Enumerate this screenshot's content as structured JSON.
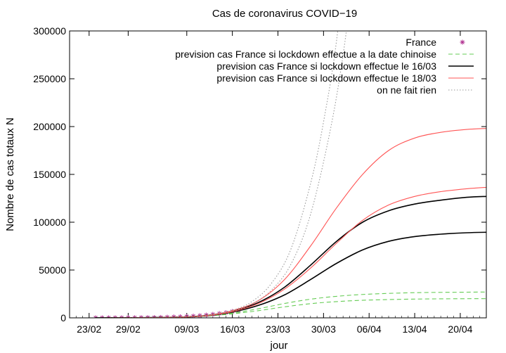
{
  "chart_data": {
    "type": "line",
    "title": "Cas de coronavirus COVID−19",
    "xlabel": "jour",
    "ylabel": "Nombre de cas totaux N",
    "xlim": [
      "2020-02-20",
      "2020-04-24"
    ],
    "ylim": [
      0,
      300000
    ],
    "x_ticks": [
      {
        "date": "2020-02-23",
        "label": "23/02"
      },
      {
        "date": "2020-02-29",
        "label": "29/02"
      },
      {
        "date": "2020-03-09",
        "label": "09/03"
      },
      {
        "date": "2020-03-16",
        "label": "16/03"
      },
      {
        "date": "2020-03-23",
        "label": "23/03"
      },
      {
        "date": "2020-03-30",
        "label": "30/03"
      },
      {
        "date": "2020-04-06",
        "label": "06/04"
      },
      {
        "date": "2020-04-13",
        "label": "13/04"
      },
      {
        "date": "2020-04-20",
        "label": "20/04"
      }
    ],
    "y_ticks": [
      {
        "value": 0,
        "label": "0"
      },
      {
        "value": 50000,
        "label": "50000"
      },
      {
        "value": 100000,
        "label": "100000"
      },
      {
        "value": 150000,
        "label": "150000"
      },
      {
        "value": 200000,
        "label": "200000"
      },
      {
        "value": 250000,
        "label": "250000"
      },
      {
        "value": 300000,
        "label": "300000"
      }
    ],
    "grid": false,
    "legend_position": "top-right",
    "series": [
      {
        "name": "France",
        "style": "points",
        "color": "#b03090",
        "x": [
          "2020-02-24",
          "2020-02-25",
          "2020-02-26",
          "2020-02-27",
          "2020-02-28",
          "2020-02-29",
          "2020-03-01",
          "2020-03-02",
          "2020-03-03",
          "2020-03-04",
          "2020-03-05",
          "2020-03-06",
          "2020-03-07",
          "2020-03-08",
          "2020-03-09",
          "2020-03-10",
          "2020-03-11",
          "2020-03-12",
          "2020-03-13",
          "2020-03-14",
          "2020-03-15",
          "2020-03-16",
          "2020-03-17"
        ],
        "y": [
          12,
          12,
          18,
          38,
          57,
          100,
          130,
          191,
          212,
          285,
          423,
          653,
          949,
          1126,
          1412,
          1784,
          2281,
          2876,
          3661,
          4499,
          5423,
          6633,
          7730
        ]
      },
      {
        "name": "prevision cas France si lockdown effectue  a la date chinoise",
        "style": "dashed",
        "color": "#66cc55",
        "curves": [
          {
            "x": [
              "2020-02-24",
              "2020-03-01",
              "2020-03-08",
              "2020-03-12",
              "2020-03-16",
              "2020-03-20",
              "2020-03-24",
              "2020-03-28",
              "2020-04-01",
              "2020-04-06",
              "2020-04-13",
              "2020-04-20",
              "2020-04-24"
            ],
            "y": [
              20,
              120,
              700,
              2000,
              5000,
              9500,
              15000,
              19500,
              22500,
              24800,
              26300,
              26800,
              27000
            ]
          },
          {
            "x": [
              "2020-02-24",
              "2020-03-01",
              "2020-03-08",
              "2020-03-12",
              "2020-03-16",
              "2020-03-20",
              "2020-03-24",
              "2020-03-28",
              "2020-04-01",
              "2020-04-06",
              "2020-04-13",
              "2020-04-20",
              "2020-04-24"
            ],
            "y": [
              20,
              110,
              650,
              1800,
              4200,
              7500,
              11500,
              14800,
              17000,
              18600,
              19600,
              20000,
              20100
            ]
          }
        ]
      },
      {
        "name": "prevision cas France si lockdown effectue  le  16/03",
        "style": "solid",
        "color": "#000000",
        "curves": [
          {
            "x": [
              "2020-02-24",
              "2020-03-01",
              "2020-03-08",
              "2020-03-12",
              "2020-03-16",
              "2020-03-20",
              "2020-03-24",
              "2020-03-28",
              "2020-04-01",
              "2020-04-05",
              "2020-04-09",
              "2020-04-13",
              "2020-04-17",
              "2020-04-21",
              "2020-04-24"
            ],
            "y": [
              20,
              120,
              800,
              2500,
              7000,
              16000,
              32000,
              55000,
              80000,
              100000,
              112000,
              119000,
              123000,
              126000,
              127000
            ]
          },
          {
            "x": [
              "2020-02-24",
              "2020-03-01",
              "2020-03-08",
              "2020-03-12",
              "2020-03-16",
              "2020-03-20",
              "2020-03-24",
              "2020-03-28",
              "2020-04-01",
              "2020-04-05",
              "2020-04-09",
              "2020-04-13",
              "2020-04-17",
              "2020-04-21",
              "2020-04-24"
            ],
            "y": [
              20,
              110,
              700,
              2200,
              6000,
              13000,
              24000,
              40000,
              57000,
              71000,
              80000,
              85000,
              87500,
              89000,
              89500
            ]
          }
        ]
      },
      {
        "name": "prevision cas France si lockdown effectue  le  18/03",
        "style": "solid",
        "color": "#ff5555",
        "curves": [
          {
            "x": [
              "2020-02-24",
              "2020-03-01",
              "2020-03-08",
              "2020-03-12",
              "2020-03-16",
              "2020-03-20",
              "2020-03-24",
              "2020-03-28",
              "2020-04-01",
              "2020-04-05",
              "2020-04-09",
              "2020-04-13",
              "2020-04-17",
              "2020-04-21",
              "2020-04-24"
            ],
            "y": [
              20,
              120,
              800,
              2500,
              7500,
              18000,
              40000,
              75000,
              115000,
              150000,
              175000,
              188000,
              194000,
              197000,
              198000
            ]
          },
          {
            "x": [
              "2020-02-24",
              "2020-03-01",
              "2020-03-08",
              "2020-03-12",
              "2020-03-16",
              "2020-03-20",
              "2020-03-24",
              "2020-03-28",
              "2020-04-01",
              "2020-04-05",
              "2020-04-09",
              "2020-04-13",
              "2020-04-17",
              "2020-04-21",
              "2020-04-24"
            ],
            "y": [
              20,
              110,
              700,
              2200,
              6500,
              15000,
              30000,
              52000,
              78000,
              102000,
              118000,
              127000,
              132000,
              135000,
              136500
            ]
          }
        ]
      },
      {
        "name": "on ne fait rien",
        "style": "dotted",
        "color": "#999999",
        "curves": [
          {
            "x": [
              "2020-02-24",
              "2020-03-01",
              "2020-03-08",
              "2020-03-12",
              "2020-03-16",
              "2020-03-19",
              "2020-03-22",
              "2020-03-25",
              "2020-03-28",
              "2020-03-30",
              "2020-04-01",
              "2020-04-03"
            ],
            "y": [
              20,
              130,
              900,
              2800,
              8000,
              17000,
              36000,
              72000,
              140000,
              205000,
              290000,
              420000
            ]
          },
          {
            "x": [
              "2020-02-24",
              "2020-03-01",
              "2020-03-08",
              "2020-03-12",
              "2020-03-16",
              "2020-03-19",
              "2020-03-22",
              "2020-03-25",
              "2020-03-28",
              "2020-03-31",
              "2020-04-02",
              "2020-04-04"
            ],
            "y": [
              20,
              120,
              800,
              2500,
              7000,
              14500,
              29000,
              56000,
              108000,
              195000,
              275000,
              380000
            ]
          }
        ]
      }
    ]
  }
}
